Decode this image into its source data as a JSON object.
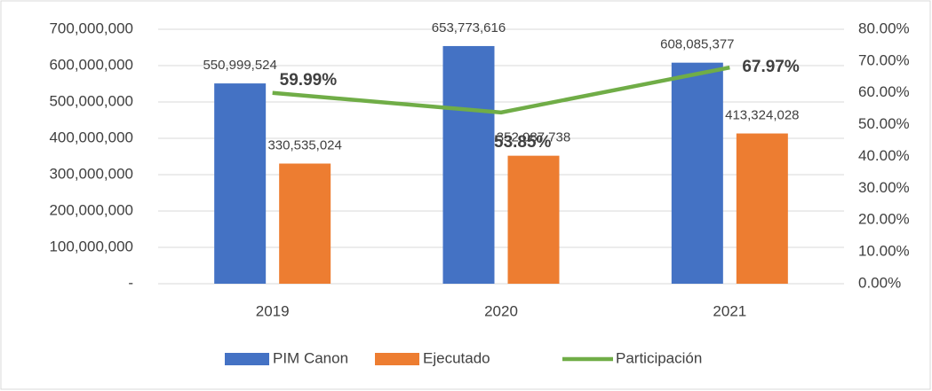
{
  "chart_data": {
    "type": "bar",
    "categories": [
      "2019",
      "2020",
      "2021"
    ],
    "series": [
      {
        "name": "PIM Canon",
        "type": "bar",
        "color": "#4472c4",
        "values": [
          550999524,
          653773616,
          608085377
        ],
        "value_labels": [
          "550,999,524",
          "653,773,616",
          "608,085,377"
        ]
      },
      {
        "name": "Ejecutado",
        "type": "bar",
        "color": "#ed7d31",
        "values": [
          330535024,
          352087738,
          413324028
        ],
        "value_labels": [
          "330,535,024",
          "352,087,738",
          "413,324,028"
        ]
      },
      {
        "name": "Participación",
        "type": "line",
        "axis": "y2",
        "color": "#70ad47",
        "values": [
          59.99,
          53.85,
          67.97
        ],
        "value_labels": [
          "59.99%",
          "53.85%",
          "67.97%"
        ]
      }
    ],
    "ylim": [
      0,
      700000000
    ],
    "yticks": [
      {
        "value": 0,
        "label": "-"
      },
      {
        "value": 100000000,
        "label": "100,000,000"
      },
      {
        "value": 200000000,
        "label": "200,000,000"
      },
      {
        "value": 300000000,
        "label": "300,000,000"
      },
      {
        "value": 400000000,
        "label": "400,000,000"
      },
      {
        "value": 500000000,
        "label": "500,000,000"
      },
      {
        "value": 600000000,
        "label": "600,000,000"
      },
      {
        "value": 700000000,
        "label": "700,000,000"
      }
    ],
    "y2lim": [
      0,
      80
    ],
    "y2ticks": [
      {
        "value": 0,
        "label": "0.00%"
      },
      {
        "value": 10,
        "label": "10.00%"
      },
      {
        "value": 20,
        "label": "20.00%"
      },
      {
        "value": 30,
        "label": "30.00%"
      },
      {
        "value": 40,
        "label": "40.00%"
      },
      {
        "value": 50,
        "label": "50.00%"
      },
      {
        "value": 60,
        "label": "60.00%"
      },
      {
        "value": 70,
        "label": "70.00%"
      },
      {
        "value": 80,
        "label": "80.00%"
      }
    ],
    "grid": true,
    "legend": "bottom"
  }
}
